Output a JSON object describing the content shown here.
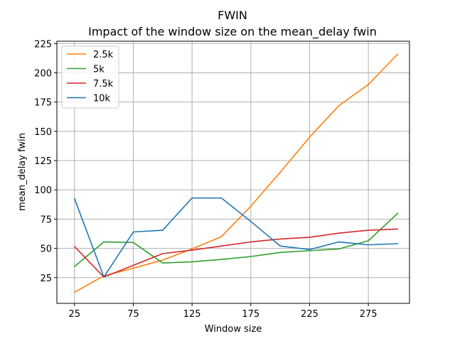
{
  "chart_data": {
    "type": "line",
    "title": "FWIN",
    "subtitle": "Impact of the window size on the mean_delay fwin",
    "xlabel": "Window size",
    "ylabel": "mean_delay fwin",
    "x": [
      25,
      50,
      75,
      100,
      125,
      150,
      175,
      200,
      225,
      250,
      275,
      300
    ],
    "xlim": [
      10,
      310
    ],
    "ylim": [
      3,
      227
    ],
    "xticks": [
      25,
      75,
      125,
      175,
      225,
      275
    ],
    "yticks": [
      25,
      50,
      75,
      100,
      125,
      150,
      175,
      200,
      225
    ],
    "grid": true,
    "legend_position": "top-left",
    "series": [
      {
        "name": "2.5k",
        "color": "#ff7f0e",
        "values": [
          12.5,
          26.5,
          33,
          40,
          49.5,
          60,
          86,
          115,
          145,
          172,
          190,
          216
        ]
      },
      {
        "name": "5k",
        "color": "#2ca02c",
        "values": [
          34.5,
          55.5,
          55,
          37.5,
          38.5,
          40.5,
          43,
          46.5,
          48,
          49.5,
          56.5,
          80
        ]
      },
      {
        "name": "7.5k",
        "color": "#d62728",
        "values": [
          51.5,
          25.5,
          35.5,
          45.5,
          48.5,
          52,
          55.5,
          58,
          59.5,
          63,
          65.5,
          66.5
        ]
      },
      {
        "name": "10k",
        "color": "#1f77b4",
        "values": [
          92.5,
          25.5,
          64,
          65.5,
          93,
          93,
          73,
          52,
          49,
          55.5,
          53,
          54
        ]
      }
    ]
  }
}
